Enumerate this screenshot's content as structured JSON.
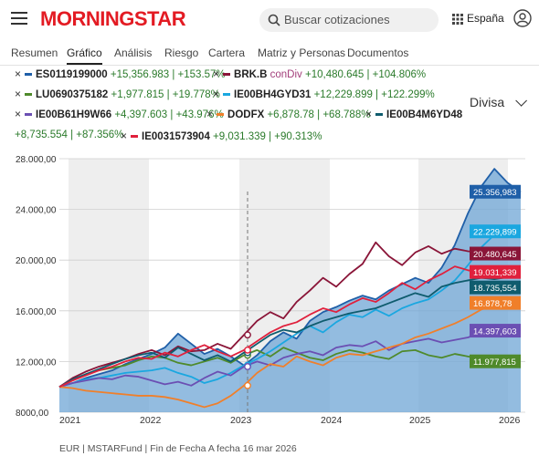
{
  "header": {
    "logo": "MORNINGSTAR",
    "search_placeholder": "Buscar cotizaciones",
    "region": "España"
  },
  "tabs": [
    {
      "label": "Resumen",
      "active": false
    },
    {
      "label": "Gráfico",
      "active": true
    },
    {
      "label": "Análisis",
      "active": false
    },
    {
      "label": "Riesgo",
      "active": false
    },
    {
      "label": "Cartera",
      "active": false
    },
    {
      "label": "Matriz y Personas",
      "active": false
    },
    {
      "label": "Documentos",
      "active": false
    }
  ],
  "legend": [
    {
      "name": "ES0119199000",
      "tag": "",
      "change": "+15,356.983 | +153.57%",
      "color": "#1f5fa8"
    },
    {
      "name": "BRK.B",
      "tag": "conDiv",
      "change": "+10,480.645 | +104.806%",
      "color": "#8a1538"
    },
    {
      "name": "LU0690375182",
      "tag": "",
      "change": "+1,977.815 | +19.778%",
      "color": "#4f8a2b"
    },
    {
      "name": "IE00BH4GYD31",
      "tag": "",
      "change": "+12,229.899 | +122.299%",
      "color": "#1aa7e0"
    },
    {
      "name": "IE00B61H9W66",
      "tag": "",
      "change": "+4,397.603 | +43.976%",
      "color": "#6b4fb3"
    },
    {
      "name": "DODFX",
      "tag": "",
      "change": "+6,878.78 | +68.788%",
      "color": "#f07f2a"
    },
    {
      "name": "IE00B4M6YD48",
      "tag": "",
      "change": "+8,735.554 | +87.356%",
      "color": "#0f5c6e"
    },
    {
      "name": "IE0031573904",
      "tag": "",
      "change": "+9,031.339 | +90.313%",
      "color": "#e0203c"
    }
  ],
  "divisa_label": "Divisa",
  "footer": "EUR | MSTARFund | Fin de Fecha A fecha 16 mar 2026",
  "chart_data": {
    "type": "line",
    "x_labels": [
      "2021",
      "2022",
      "2023",
      "2024",
      "2025",
      "2026"
    ],
    "y_ticks": [
      "28.000,00",
      "24.000,00",
      "20.000,00",
      "16.000,00",
      "12.000,00",
      "8000,00"
    ],
    "ylim": [
      8000,
      28000
    ],
    "series": [
      {
        "name": "ES0119199000",
        "color": "#1f5fa8",
        "end_label": "25.356,983",
        "values": [
          10000,
          10300,
          10700,
          11000,
          11300,
          11800,
          12200,
          12600,
          13100,
          14200,
          13400,
          12600,
          13000,
          12400,
          11700,
          12500,
          13600,
          14300,
          13800,
          15200,
          15900,
          16300,
          16800,
          17200,
          16900,
          17600,
          18100,
          18600,
          18200,
          19400,
          21200,
          23700,
          25800,
          27200,
          26100,
          25357
        ]
      },
      {
        "name": "BRK.B",
        "color": "#8a1538",
        "end_label": "20.480,645",
        "values": [
          10000,
          10700,
          11200,
          11600,
          11900,
          12200,
          12600,
          12900,
          12500,
          13200,
          12800,
          12900,
          13400,
          13000,
          14100,
          15200,
          15900,
          15400,
          16700,
          17600,
          18600,
          17900,
          18900,
          19700,
          21400,
          20300,
          19600,
          20600,
          21100,
          20500,
          20900,
          20700,
          20600,
          20550,
          20500,
          20481
        ]
      },
      {
        "name": "LU0690375182",
        "color": "#4f8a2b",
        "end_label": "11.977,815",
        "values": [
          10000,
          10500,
          11000,
          11300,
          11500,
          11700,
          12100,
          12400,
          12300,
          11900,
          11700,
          12000,
          12300,
          11900,
          12500,
          12900,
          12400,
          13100,
          12700,
          12300,
          12100,
          12600,
          12900,
          12700,
          12400,
          12200,
          12800,
          12900,
          12500,
          12300,
          12600,
          12400,
          12200,
          12100,
          12050,
          11978
        ]
      },
      {
        "name": "IE00BH4GYD31",
        "color": "#1aa7e0",
        "end_label": "22.229,899",
        "values": [
          10000,
          10300,
          10600,
          10700,
          10900,
          11100,
          11200,
          11300,
          11500,
          11100,
          10800,
          10300,
          10600,
          11100,
          11700,
          12200,
          12800,
          13500,
          14200,
          14800,
          14300,
          15100,
          15700,
          15500,
          16100,
          15600,
          16200,
          16600,
          16900,
          17600,
          18400,
          19600,
          21000,
          22000,
          22500,
          22230
        ]
      },
      {
        "name": "IE00B61H9W66",
        "color": "#6b4fb3",
        "end_label": "14.397,603",
        "values": [
          10000,
          10300,
          10500,
          10700,
          10600,
          10900,
          10800,
          10500,
          10200,
          10400,
          10100,
          10700,
          11200,
          10900,
          11600,
          12000,
          11700,
          12300,
          12600,
          12800,
          12500,
          13100,
          13300,
          13200,
          13600,
          12900,
          13400,
          13600,
          13800,
          13500,
          13700,
          13900,
          14300,
          14200,
          14500,
          14398
        ]
      },
      {
        "name": "DODFX",
        "color": "#f07f2a",
        "end_label": "16.878,78",
        "values": [
          10000,
          9900,
          9700,
          9600,
          9500,
          9400,
          9300,
          9300,
          9200,
          9000,
          8700,
          8400,
          8700,
          9300,
          10100,
          11100,
          11800,
          11600,
          12400,
          12000,
          11700,
          12300,
          12600,
          12500,
          12800,
          13100,
          13400,
          13900,
          14200,
          14600,
          15000,
          15500,
          16100,
          16400,
          16700,
          16879
        ]
      },
      {
        "name": "IE00B4M6YD48",
        "color": "#0f5c6e",
        "end_label": "18.735,554",
        "values": [
          10000,
          10600,
          11000,
          11400,
          11800,
          12200,
          12500,
          12700,
          12300,
          13100,
          12600,
          12100,
          12500,
          12000,
          12700,
          13400,
          14100,
          14500,
          14300,
          14800,
          15200,
          15500,
          15800,
          16000,
          16200,
          16600,
          17000,
          17400,
          17100,
          17900,
          18200,
          18400,
          18600,
          18500,
          18650,
          18736
        ]
      },
      {
        "name": "IE0031573904",
        "color": "#e0203c",
        "end_label": "19.031,339",
        "values": [
          10000,
          10500,
          10900,
          11300,
          11600,
          12000,
          12300,
          12200,
          12700,
          12400,
          12900,
          13300,
          12800,
          12400,
          12900,
          13600,
          14300,
          14800,
          15100,
          15700,
          16200,
          15900,
          16500,
          17000,
          16700,
          17400,
          18200,
          17700,
          18400,
          18900,
          19500,
          19200,
          19000,
          19300,
          19100,
          19031
        ]
      }
    ]
  }
}
